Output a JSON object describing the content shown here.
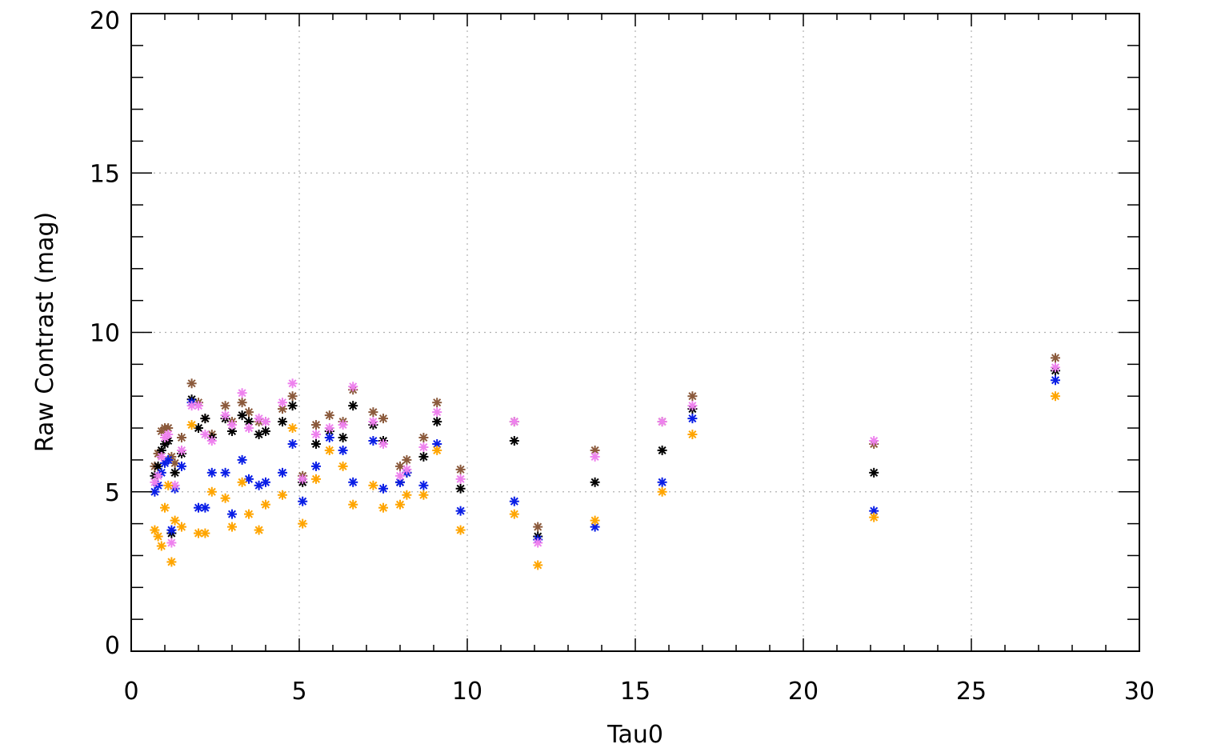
{
  "chart_data": {
    "type": "scatter",
    "xlabel": "Tau0",
    "ylabel": "Raw Contrast (mag)",
    "xlim": [
      0,
      30
    ],
    "ylim": [
      0,
      20
    ],
    "x_ticks": [
      0,
      5,
      10,
      15,
      20,
      25,
      30
    ],
    "x_tick_labels": [
      "0",
      "5",
      "10",
      "15",
      "20",
      "25",
      "30"
    ],
    "y_ticks": [
      0,
      5,
      10,
      15,
      20
    ],
    "y_tick_labels": [
      "0",
      "5",
      "10",
      "15",
      "20"
    ],
    "grid": true,
    "marker": "asterisk",
    "series": [
      {
        "color": "#8b5a3c",
        "x": [
          0.7,
          0.8,
          0.9,
          1.0,
          1.1,
          1.2,
          1.3,
          1.5,
          1.8,
          2.0,
          2.2,
          2.4,
          2.8,
          3.0,
          3.3,
          3.5,
          3.8,
          4.0,
          4.5,
          4.8,
          5.1,
          5.5,
          5.9,
          6.3,
          6.6,
          7.2,
          7.5,
          8.0,
          8.2,
          8.7,
          9.1,
          9.8,
          11.4,
          12.1,
          13.8,
          15.8,
          16.7,
          22.1,
          27.5
        ],
        "y": [
          5.8,
          6.2,
          6.9,
          7.0,
          7.0,
          6.1,
          5.9,
          6.7,
          8.4,
          7.8,
          7.3,
          6.8,
          7.7,
          7.2,
          7.8,
          7.5,
          7.2,
          7.2,
          7.6,
          8.0,
          5.5,
          7.1,
          7.4,
          7.2,
          8.2,
          7.5,
          7.3,
          5.8,
          6.0,
          6.7,
          7.8,
          5.7,
          7.2,
          3.9,
          6.3,
          7.2,
          8.0,
          6.5,
          9.2
        ]
      },
      {
        "color": "#000000",
        "x": [
          0.7,
          0.8,
          0.9,
          1.0,
          1.1,
          1.2,
          1.3,
          1.5,
          1.8,
          2.0,
          2.2,
          2.4,
          2.8,
          3.0,
          3.3,
          3.5,
          3.8,
          4.0,
          4.5,
          4.8,
          5.1,
          5.5,
          5.9,
          6.3,
          6.6,
          7.2,
          7.5,
          8.0,
          8.2,
          8.7,
          9.1,
          9.8,
          11.4,
          12.1,
          13.8,
          15.8,
          16.7,
          22.1,
          27.5
        ],
        "y": [
          5.5,
          5.8,
          6.3,
          6.5,
          6.6,
          3.7,
          5.6,
          6.2,
          7.9,
          7.0,
          7.3,
          6.7,
          7.3,
          6.9,
          7.4,
          7.2,
          6.8,
          6.9,
          7.2,
          7.7,
          5.3,
          6.5,
          6.9,
          6.7,
          7.7,
          7.1,
          6.6,
          5.3,
          5.6,
          6.1,
          7.2,
          5.1,
          6.6,
          3.6,
          5.3,
          6.3,
          7.6,
          5.6,
          8.8
        ]
      },
      {
        "color": "#0a1ee6",
        "x": [
          0.7,
          0.8,
          0.9,
          1.0,
          1.1,
          1.2,
          1.3,
          1.5,
          1.8,
          2.0,
          2.2,
          2.4,
          2.8,
          3.0,
          3.3,
          3.5,
          3.8,
          4.0,
          4.5,
          4.8,
          5.1,
          5.5,
          5.9,
          6.3,
          6.6,
          7.2,
          7.5,
          8.0,
          8.2,
          8.7,
          9.1,
          9.8,
          11.4,
          12.1,
          13.8,
          15.8,
          16.7,
          22.1,
          27.5
        ],
        "y": [
          5.0,
          5.2,
          5.6,
          5.9,
          6.0,
          3.8,
          5.1,
          5.8,
          7.8,
          4.5,
          4.5,
          5.6,
          5.6,
          4.3,
          6.0,
          5.4,
          5.2,
          5.3,
          5.6,
          6.5,
          4.7,
          5.8,
          6.7,
          6.3,
          5.3,
          6.6,
          5.1,
          5.3,
          5.6,
          5.2,
          6.5,
          4.4,
          4.7,
          3.5,
          3.9,
          5.3,
          7.3,
          4.4,
          8.5
        ]
      },
      {
        "color": "#ee82ee",
        "x": [
          0.7,
          0.8,
          0.9,
          1.0,
          1.1,
          1.2,
          1.3,
          1.5,
          1.8,
          2.0,
          2.2,
          2.4,
          2.8,
          3.0,
          3.3,
          3.5,
          3.8,
          4.0,
          4.5,
          4.8,
          5.1,
          5.5,
          5.9,
          6.3,
          6.6,
          7.2,
          7.5,
          8.0,
          8.2,
          8.7,
          9.1,
          9.8,
          11.4,
          12.1,
          13.8,
          15.8,
          16.7,
          22.1,
          27.5
        ],
        "y": [
          5.3,
          5.5,
          6.1,
          6.7,
          6.8,
          3.4,
          5.2,
          6.3,
          7.7,
          7.7,
          6.8,
          6.6,
          7.4,
          7.1,
          8.1,
          7.0,
          7.3,
          7.2,
          7.8,
          8.4,
          5.4,
          6.8,
          7.0,
          7.1,
          8.3,
          7.2,
          6.5,
          5.5,
          5.7,
          6.4,
          7.5,
          5.4,
          7.2,
          3.4,
          6.1,
          7.2,
          7.7,
          6.6,
          8.9
        ]
      },
      {
        "color": "#ffa500",
        "x": [
          0.7,
          0.8,
          0.9,
          1.0,
          1.1,
          1.2,
          1.3,
          1.5,
          1.8,
          2.0,
          2.2,
          2.4,
          2.8,
          3.0,
          3.3,
          3.5,
          3.8,
          4.0,
          4.5,
          4.8,
          5.1,
          5.5,
          5.9,
          6.3,
          6.6,
          7.2,
          7.5,
          8.0,
          8.2,
          8.7,
          9.1,
          9.8,
          11.4,
          12.1,
          13.8,
          15.8,
          16.7,
          22.1,
          27.5
        ],
        "y": [
          3.8,
          3.6,
          3.3,
          4.5,
          5.2,
          2.8,
          4.1,
          3.9,
          7.1,
          3.7,
          3.7,
          5.0,
          4.8,
          3.9,
          5.3,
          4.3,
          3.8,
          4.6,
          4.9,
          7.0,
          4.0,
          5.4,
          6.3,
          5.8,
          4.6,
          5.2,
          4.5,
          4.6,
          4.9,
          4.9,
          6.3,
          3.8,
          4.3,
          2.7,
          4.1,
          5.0,
          6.8,
          4.2,
          8.0
        ]
      }
    ]
  }
}
